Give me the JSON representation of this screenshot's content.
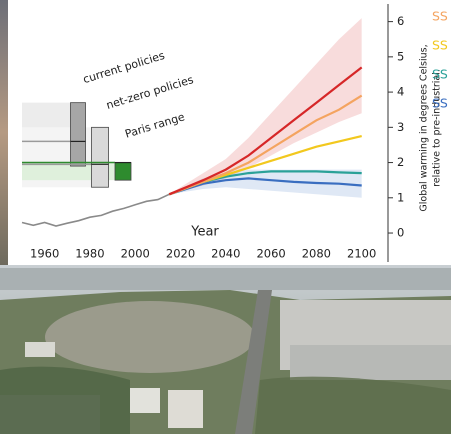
{
  "chart_data": {
    "type": "line",
    "x_label": "Year",
    "y_label": [
      "Global warming in degrees Celsius,",
      "relative to pre-industrial."
    ],
    "annotations": [
      "current policies",
      "net-zero policies",
      "Paris range"
    ],
    "x": [
      1950,
      1955,
      1960,
      1965,
      1970,
      1975,
      1980,
      1985,
      1990,
      1995,
      2000,
      2005,
      2010,
      2015,
      2030,
      2040,
      2050,
      2060,
      2070,
      2080,
      2090,
      2100
    ],
    "xlim": [
      1950,
      2105
    ],
    "xticks": [
      1960,
      1980,
      2000,
      2020,
      2040,
      2060,
      2080,
      2100
    ],
    "ylim": [
      -0.3,
      6.5
    ],
    "yticks": [
      0,
      1,
      2,
      3,
      4,
      5,
      6
    ],
    "series": [
      {
        "color": "#8a8a8a",
        "values": [
          0.3,
          0.22,
          0.3,
          0.2,
          0.28,
          0.35,
          0.45,
          0.5,
          0.62,
          0.7,
          0.8,
          0.9,
          0.95,
          1.1,
          null,
          null,
          null,
          null,
          null,
          null,
          null,
          null
        ]
      },
      {
        "color": "#d62728",
        "values": [
          null,
          null,
          null,
          null,
          null,
          null,
          null,
          null,
          null,
          null,
          null,
          null,
          null,
          1.1,
          1.5,
          1.8,
          2.2,
          2.7,
          3.2,
          3.7,
          4.2,
          4.7
        ],
        "lower": [
          null,
          null,
          null,
          null,
          null,
          null,
          null,
          null,
          null,
          null,
          null,
          null,
          null,
          1.1,
          1.35,
          1.55,
          1.85,
          2.2,
          2.55,
          2.85,
          3.15,
          3.4
        ],
        "upper": [
          null,
          null,
          null,
          null,
          null,
          null,
          null,
          null,
          null,
          null,
          null,
          null,
          null,
          1.1,
          1.7,
          2.1,
          2.7,
          3.4,
          4.1,
          4.8,
          5.5,
          6.1
        ]
      },
      {
        "name": "SS",
        "color": "#f4a460",
        "values": [
          null,
          null,
          null,
          null,
          null,
          null,
          null,
          null,
          null,
          null,
          null,
          null,
          null,
          1.1,
          1.45,
          1.7,
          2.0,
          2.4,
          2.8,
          3.2,
          3.5,
          3.9
        ]
      },
      {
        "name": "SS",
        "color": "#f2c81e",
        "values": [
          null,
          null,
          null,
          null,
          null,
          null,
          null,
          null,
          null,
          null,
          null,
          null,
          null,
          1.1,
          1.45,
          1.65,
          1.85,
          2.05,
          2.25,
          2.45,
          2.6,
          2.75
        ]
      },
      {
        "name": "SS",
        "color": "#2aa198",
        "values": [
          null,
          null,
          null,
          null,
          null,
          null,
          null,
          null,
          null,
          null,
          null,
          null,
          null,
          1.1,
          1.45,
          1.6,
          1.7,
          1.75,
          1.75,
          1.75,
          1.72,
          1.7
        ]
      },
      {
        "name": "SS",
        "color": "#3a6ec0",
        "values": [
          null,
          null,
          null,
          null,
          null,
          null,
          null,
          null,
          null,
          null,
          null,
          null,
          null,
          1.1,
          1.4,
          1.5,
          1.55,
          1.5,
          1.45,
          1.42,
          1.4,
          1.35
        ],
        "lower": [
          null,
          null,
          null,
          null,
          null,
          null,
          null,
          null,
          null,
          null,
          null,
          null,
          null,
          1.1,
          1.25,
          1.3,
          1.25,
          1.2,
          1.15,
          1.1,
          1.05,
          1.0
        ],
        "upper": [
          null,
          null,
          null,
          null,
          null,
          null,
          null,
          null,
          null,
          null,
          null,
          null,
          null,
          1.1,
          1.55,
          1.7,
          1.8,
          1.8,
          1.8,
          1.8,
          1.8,
          1.8
        ]
      }
    ],
    "ranges": [
      {
        "color": "#a6a6a6",
        "shade": "#ececec",
        "low": 1.9,
        "high": 3.7,
        "median": 2.6
      },
      {
        "color": "#d9d9d9",
        "shade": "#f4f4f4",
        "low": 1.3,
        "high": 3.0,
        "median": 1.95
      },
      {
        "color": "#2e8b2e",
        "shade": "#dff0dc",
        "low": 1.5,
        "high": 2.0,
        "median": 2.0
      }
    ]
  }
}
